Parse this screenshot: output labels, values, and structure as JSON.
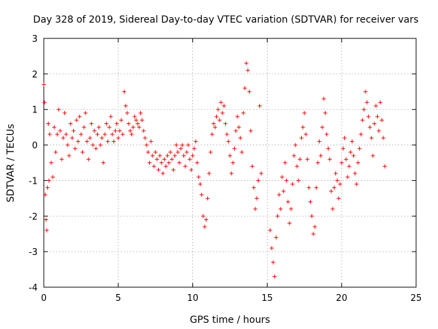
{
  "chart_data": {
    "type": "scatter",
    "title": "Day 328 of 2019, Sidereal Day-to-day VTEC variation (SDTVAR) for receiver vars",
    "xlabel": "GPS time / hours",
    "ylabel": "SDTVAR / TECUs",
    "xlim": [
      0,
      25
    ],
    "ylim": [
      -4,
      3
    ],
    "xticks": [
      0,
      5,
      10,
      15,
      20,
      25
    ],
    "yticks": [
      -4,
      -3,
      -2,
      -1,
      0,
      1,
      2,
      3
    ],
    "xtick_labels": [
      "0",
      "5",
      "10",
      "15",
      "20",
      "25"
    ],
    "ytick_labels": [
      "-4",
      "-3",
      "-2",
      "-1",
      "0",
      "1",
      "2",
      "3"
    ],
    "grid": true,
    "marker": "+",
    "color": "#ff0000",
    "series": [
      {
        "name": "SDTVAR",
        "x": [
          0.0,
          0.05,
          0.1,
          0.15,
          0.2,
          0.25,
          0.3,
          0.35,
          0.4,
          0.5,
          0.6,
          0.7,
          0.8,
          0.9,
          1.0,
          1.1,
          1.2,
          1.3,
          1.4,
          1.5,
          1.6,
          1.7,
          1.8,
          1.9,
          2.0,
          2.1,
          2.2,
          2.3,
          2.4,
          2.5,
          2.6,
          2.7,
          2.8,
          2.9,
          3.0,
          3.1,
          3.2,
          3.3,
          3.4,
          3.5,
          3.6,
          3.7,
          3.8,
          3.9,
          4.0,
          4.1,
          4.2,
          4.3,
          4.4,
          4.5,
          4.6,
          4.7,
          4.8,
          4.9,
          5.0,
          5.1,
          5.2,
          5.3,
          5.4,
          5.5,
          5.6,
          5.7,
          5.8,
          5.9,
          6.0,
          6.1,
          6.2,
          6.3,
          6.4,
          6.5,
          6.6,
          6.7,
          6.8,
          6.9,
          7.0,
          7.1,
          7.2,
          7.3,
          7.4,
          7.5,
          7.6,
          7.7,
          7.8,
          7.9,
          8.0,
          8.1,
          8.2,
          8.3,
          8.4,
          8.5,
          8.6,
          8.7,
          8.8,
          8.9,
          9.0,
          9.1,
          9.2,
          9.3,
          9.4,
          9.5,
          9.6,
          9.7,
          9.8,
          9.9,
          10.0,
          10.1,
          10.2,
          10.3,
          10.4,
          10.5,
          10.6,
          10.7,
          10.8,
          10.9,
          11.0,
          11.1,
          11.2,
          11.3,
          11.4,
          11.5,
          11.6,
          11.7,
          11.8,
          11.9,
          12.0,
          12.1,
          12.2,
          12.3,
          12.4,
          12.5,
          12.6,
          12.7,
          12.8,
          12.9,
          13.0,
          13.1,
          13.2,
          13.3,
          13.4,
          13.5,
          13.6,
          13.7,
          13.8,
          13.9,
          14.0,
          14.1,
          14.2,
          14.3,
          14.4,
          14.5,
          14.6,
          15.2,
          15.3,
          15.4,
          15.5,
          15.6,
          15.7,
          15.8,
          15.9,
          16.0,
          16.1,
          16.2,
          16.3,
          16.4,
          16.5,
          16.6,
          16.7,
          16.8,
          16.9,
          17.0,
          17.1,
          17.2,
          17.3,
          17.4,
          17.5,
          17.6,
          17.7,
          17.8,
          17.9,
          18.0,
          18.1,
          18.2,
          18.3,
          18.4,
          18.5,
          18.6,
          18.7,
          18.8,
          18.9,
          19.0,
          19.1,
          19.2,
          19.3,
          19.4,
          19.5,
          19.6,
          19.7,
          19.8,
          19.9,
          20.0,
          20.1,
          20.2,
          20.3,
          20.4,
          20.5,
          20.6,
          20.7,
          20.8,
          20.9,
          21.0,
          21.1,
          21.2,
          21.3,
          21.4,
          21.5,
          21.6,
          21.7,
          21.8,
          21.9,
          22.0,
          22.1,
          22.2,
          22.3,
          22.4,
          22.5,
          22.6,
          22.7,
          22.8,
          22.9
        ],
        "y": [
          1.7,
          1.2,
          -1.4,
          -2.1,
          -2.4,
          -1.2,
          0.6,
          -1.0,
          0.3,
          -0.5,
          -0.9,
          0.5,
          -0.2,
          0.3,
          1.0,
          0.4,
          -0.4,
          0.2,
          0.9,
          0.3,
          0.0,
          -0.3,
          0.6,
          0.2,
          0.4,
          -0.1,
          0.7,
          0.1,
          0.8,
          0.3,
          -0.2,
          0.5,
          0.9,
          0.1,
          -0.4,
          0.2,
          0.6,
          0.0,
          0.4,
          -0.1,
          0.3,
          0.5,
          0.0,
          0.2,
          -0.5,
          0.3,
          0.6,
          0.1,
          0.5,
          0.8,
          0.3,
          0.1,
          0.4,
          0.6,
          0.2,
          0.4,
          0.7,
          0.3,
          1.5,
          1.1,
          0.9,
          0.6,
          0.4,
          0.3,
          0.5,
          0.8,
          0.7,
          0.6,
          0.5,
          0.9,
          0.7,
          0.4,
          0.2,
          0.0,
          -0.2,
          -0.5,
          0.1,
          -0.3,
          -0.6,
          -0.2,
          -0.4,
          -0.7,
          -0.3,
          -0.5,
          -0.8,
          -0.4,
          -0.6,
          -0.3,
          -0.5,
          -0.2,
          -0.4,
          -0.7,
          -0.3,
          0.0,
          -0.2,
          -0.5,
          -0.1,
          0.0,
          -0.3,
          -0.6,
          -0.2,
          0.0,
          -0.4,
          -0.7,
          -0.3,
          -0.1,
          0.1,
          -0.5,
          -0.9,
          -1.1,
          -1.4,
          -2.0,
          -2.3,
          -2.1,
          -1.5,
          -0.8,
          -0.2,
          0.3,
          0.6,
          0.5,
          0.8,
          1.0,
          0.7,
          1.2,
          0.9,
          1.1,
          0.6,
          0.3,
          0.1,
          -0.3,
          -0.8,
          -0.5,
          -0.1,
          0.4,
          0.8,
          0.5,
          0.2,
          -0.2,
          0.9,
          1.6,
          2.3,
          2.1,
          1.5,
          0.4,
          -0.6,
          -1.2,
          -1.8,
          -1.5,
          -1.0,
          1.1,
          -0.8,
          -2.4,
          -2.9,
          -3.3,
          -3.7,
          -2.6,
          -2.0,
          -1.4,
          -1.8,
          -0.9,
          -1.3,
          -0.5,
          -1.0,
          -1.6,
          -2.2,
          -1.8,
          -1.1,
          -0.3,
          0.0,
          -0.6,
          -1.0,
          -0.4,
          0.2,
          0.5,
          0.9,
          0.3,
          -0.4,
          -1.2,
          -1.6,
          -2.0,
          -2.5,
          -2.3,
          -1.2,
          -0.5,
          0.1,
          -0.3,
          0.5,
          1.3,
          0.9,
          0.3,
          -0.1,
          -0.4,
          -1.3,
          -1.8,
          -1.2,
          -0.8,
          -1.0,
          -1.5,
          -1.1,
          -0.5,
          -0.1,
          0.2,
          -0.4,
          -0.9,
          -0.6,
          -0.2,
          0.1,
          -0.3,
          -0.8,
          -1.1,
          -0.5,
          -0.1,
          0.3,
          0.7,
          1.0,
          1.5,
          1.2,
          0.8,
          0.5,
          0.2,
          -0.3,
          0.6,
          1.1,
          0.8,
          0.4,
          1.2,
          0.7,
          0.2,
          -0.6
        ]
      }
    ]
  }
}
